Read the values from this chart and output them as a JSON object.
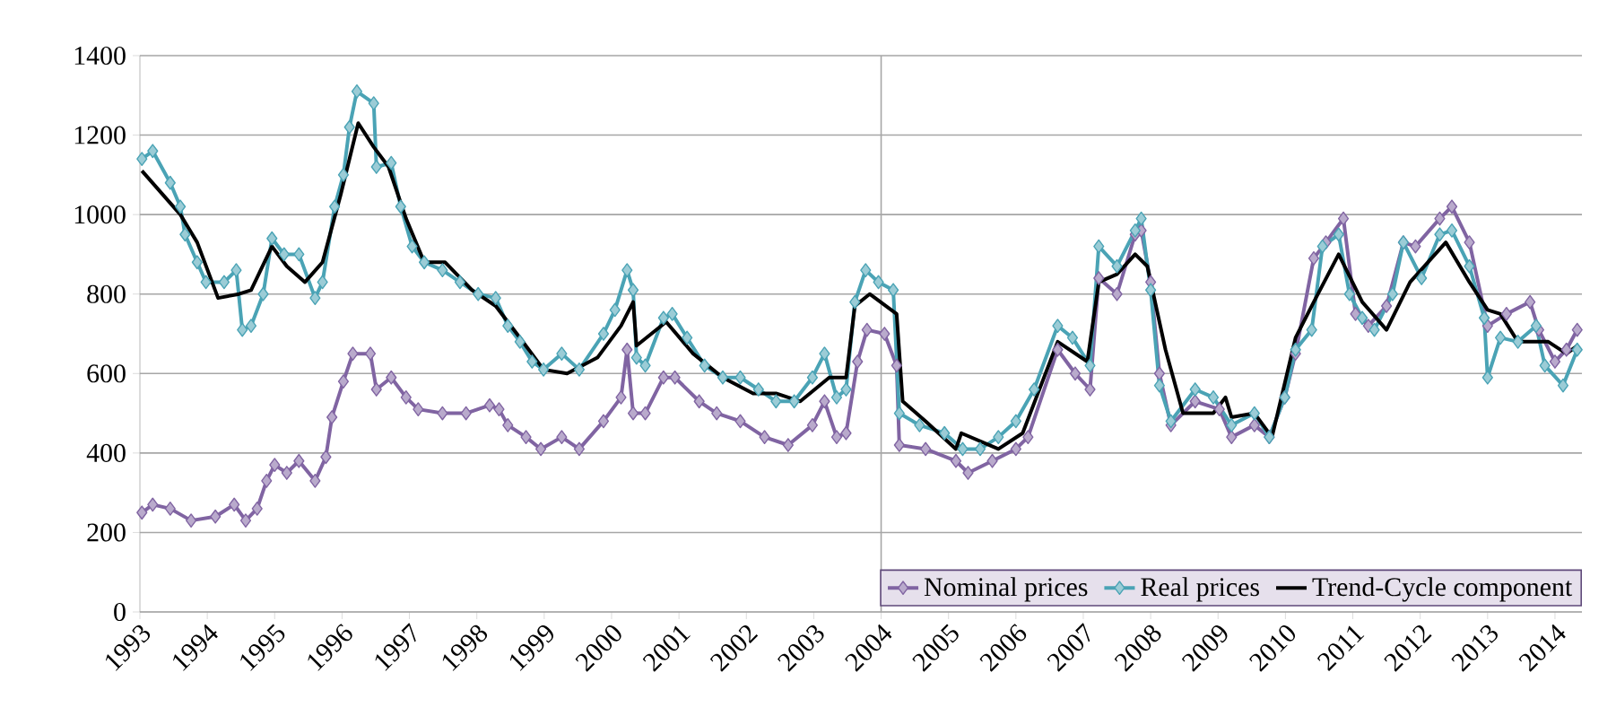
{
  "chart_data": {
    "type": "line",
    "xlim": [
      1993,
      2014.4
    ],
    "ylim": [
      0,
      1400
    ],
    "xticks": [
      1993,
      1994,
      1995,
      1996,
      1997,
      1998,
      1999,
      2000,
      2001,
      2002,
      2003,
      2004,
      2005,
      2006,
      2007,
      2008,
      2009,
      2010,
      2011,
      2012,
      2013,
      2014
    ],
    "yticks": [
      0,
      200,
      400,
      600,
      800,
      1000,
      1200,
      1400
    ],
    "grid": "y",
    "legend": "bottom right",
    "ref_lines": [
      {
        "axis": "x",
        "value": 2004,
        "color": "#a6a6a6"
      }
    ],
    "series": [
      {
        "name": "Nominal prices",
        "color": "#8064a2",
        "marker": "diamond",
        "x": [
          1993.03,
          1993.19,
          1993.45,
          1993.76,
          1994.12,
          1994.4,
          1994.57,
          1994.74,
          1994.88,
          1995.0,
          1995.18,
          1995.36,
          1995.6,
          1995.76,
          1995.85,
          1996.02,
          1996.16,
          1996.42,
          1996.51,
          1996.73,
          1996.95,
          1997.13,
          1997.49,
          1997.84,
          1998.19,
          1998.33,
          1998.46,
          1998.73,
          1998.95,
          1999.26,
          1999.52,
          1999.88,
          2000.14,
          2000.23,
          2000.32,
          2000.5,
          2000.77,
          2000.94,
          2001.3,
          2001.56,
          2001.91,
          2002.27,
          2002.62,
          2002.98,
          2003.16,
          2003.34,
          2003.48,
          2003.65,
          2003.79,
          2004.05,
          2004.23,
          2004.27,
          2004.66,
          2005.11,
          2005.29,
          2005.65,
          2006.0,
          2006.18,
          2006.62,
          2006.88,
          2007.1,
          2007.23,
          2007.5,
          2007.77,
          2007.86,
          2008.0,
          2008.13,
          2008.3,
          2008.66,
          2009.02,
          2009.2,
          2009.54,
          2009.76,
          2009.99,
          2010.15,
          2010.42,
          2010.6,
          2010.86,
          2011.04,
          2011.23,
          2011.5,
          2011.75,
          2011.93,
          2012.29,
          2012.47,
          2012.73,
          2013.0,
          2013.28,
          2013.63,
          2013.76,
          2014.0,
          2014.17,
          2014.33
        ],
        "values": [
          250,
          270,
          260,
          230,
          240,
          270,
          230,
          260,
          330,
          370,
          350,
          380,
          330,
          390,
          490,
          580,
          650,
          650,
          560,
          590,
          540,
          510,
          500,
          500,
          520,
          510,
          470,
          440,
          410,
          440,
          410,
          480,
          540,
          660,
          500,
          500,
          590,
          590,
          530,
          500,
          480,
          440,
          420,
          470,
          530,
          440,
          450,
          630,
          710,
          700,
          620,
          420,
          410,
          380,
          350,
          380,
          410,
          440,
          660,
          600,
          560,
          840,
          800,
          950,
          960,
          830,
          600,
          470,
          530,
          510,
          440,
          470,
          440,
          540,
          650,
          890,
          930,
          990,
          750,
          720,
          770,
          930,
          920,
          990,
          1020,
          930,
          720,
          750,
          780,
          710,
          630,
          660,
          710
        ]
      },
      {
        "name": "Real prices",
        "color": "#4aa3b5",
        "marker": "diamond",
        "x": [
          1993.03,
          1993.19,
          1993.45,
          1993.6,
          1993.67,
          1993.85,
          1993.98,
          1994.25,
          1994.43,
          1994.52,
          1994.65,
          1994.83,
          1994.96,
          1995.14,
          1995.36,
          1995.6,
          1995.71,
          1995.89,
          1996.02,
          1996.11,
          1996.22,
          1996.47,
          1996.51,
          1996.73,
          1996.87,
          1997.04,
          1997.22,
          1997.49,
          1997.75,
          1998.02,
          1998.28,
          1998.46,
          1998.64,
          1998.82,
          1998.99,
          1999.26,
          1999.52,
          1999.88,
          2000.05,
          2000.23,
          2000.32,
          2000.37,
          2000.5,
          2000.77,
          2000.9,
          2001.12,
          2001.38,
          2001.65,
          2001.91,
          2002.18,
          2002.44,
          2002.71,
          2002.98,
          2003.16,
          2003.34,
          2003.48,
          2003.61,
          2003.77,
          2003.96,
          2004.18,
          2004.27,
          2004.57,
          2004.94,
          2005.21,
          2005.47,
          2005.74,
          2006.0,
          2006.27,
          2006.62,
          2006.84,
          2007.1,
          2007.23,
          2007.5,
          2007.77,
          2007.86,
          2008.0,
          2008.13,
          2008.3,
          2008.66,
          2008.93,
          2009.2,
          2009.54,
          2009.76,
          2009.99,
          2010.15,
          2010.39,
          2010.55,
          2010.79,
          2010.95,
          2011.14,
          2011.32,
          2011.59,
          2011.75,
          2012.02,
          2012.29,
          2012.47,
          2012.73,
          2012.95,
          2013.0,
          2013.19,
          2013.45,
          2013.72,
          2013.85,
          2014.12,
          2014.33
        ],
        "values": [
          1140,
          1160,
          1080,
          1020,
          950,
          880,
          830,
          830,
          860,
          710,
          720,
          800,
          940,
          900,
          900,
          790,
          830,
          1020,
          1100,
          1220,
          1310,
          1280,
          1120,
          1130,
          1020,
          920,
          880,
          860,
          830,
          800,
          790,
          720,
          680,
          630,
          610,
          650,
          610,
          700,
          760,
          860,
          810,
          640,
          620,
          740,
          750,
          690,
          620,
          590,
          590,
          560,
          530,
          530,
          590,
          650,
          540,
          560,
          780,
          860,
          830,
          810,
          500,
          470,
          450,
          410,
          410,
          440,
          480,
          560,
          720,
          690,
          620,
          920,
          870,
          960,
          990,
          810,
          570,
          480,
          560,
          540,
          470,
          500,
          440,
          540,
          660,
          710,
          920,
          950,
          800,
          740,
          710,
          800,
          930,
          840,
          950,
          960,
          870,
          740,
          590,
          690,
          680,
          720,
          620,
          570,
          660
        ]
      },
      {
        "name": "Trend-Cycle component",
        "color": "#000000",
        "marker": "none",
        "x": [
          1993.03,
          1993.6,
          1993.85,
          1994.16,
          1994.47,
          1994.65,
          1994.96,
          1995.18,
          1995.45,
          1995.71,
          1995.98,
          1996.24,
          1996.47,
          1996.69,
          1996.95,
          1997.22,
          1997.53,
          1997.93,
          1998.28,
          1998.64,
          1998.99,
          1999.34,
          1999.79,
          2000.14,
          2000.32,
          2000.37,
          2000.81,
          2001.21,
          2001.65,
          2002.1,
          2002.44,
          2002.8,
          2003.23,
          2003.48,
          2003.61,
          2003.83,
          2004.23,
          2004.32,
          2004.66,
          2005.11,
          2005.19,
          2005.74,
          2006.1,
          2006.62,
          2007.06,
          2007.23,
          2007.5,
          2007.77,
          2007.95,
          2008.22,
          2008.48,
          2008.93,
          2009.11,
          2009.2,
          2009.54,
          2009.8,
          2010.15,
          2010.42,
          2010.79,
          2011.14,
          2011.5,
          2011.85,
          2012.38,
          2012.73,
          2013.0,
          2013.19,
          2013.45,
          2013.9,
          2014.17,
          2014.33
        ],
        "values": [
          1110,
          1000,
          930,
          790,
          800,
          810,
          920,
          870,
          830,
          880,
          1050,
          1230,
          1170,
          1120,
          990,
          880,
          880,
          810,
          770,
          690,
          610,
          600,
          640,
          720,
          780,
          670,
          730,
          650,
          590,
          550,
          550,
          530,
          590,
          590,
          770,
          800,
          750,
          530,
          480,
          410,
          450,
          410,
          450,
          680,
          630,
          830,
          850,
          900,
          870,
          660,
          500,
          500,
          540,
          490,
          500,
          440,
          690,
          780,
          900,
          780,
          710,
          830,
          930,
          830,
          760,
          750,
          680,
          680,
          650,
          670
        ]
      }
    ]
  }
}
